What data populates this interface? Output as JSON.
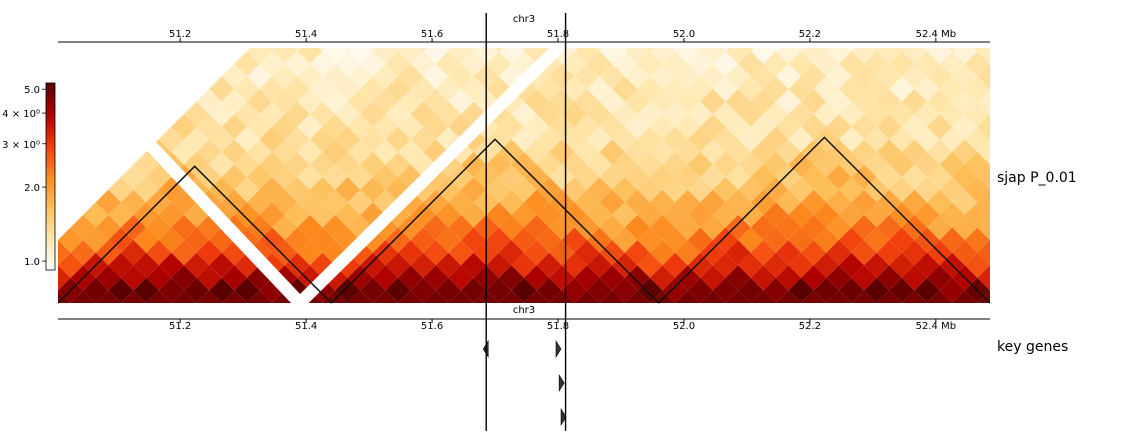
{
  "chart_data": {
    "type": "heatmap",
    "chromosome": "chr3",
    "x_ticks": [
      51.2,
      51.4,
      51.6,
      51.8,
      52.0,
      52.2,
      52.4
    ],
    "x_tick_labels": [
      "51.2",
      "51.4",
      "51.6",
      "51.8",
      "52.0",
      "52.2",
      "52.4 Mb"
    ],
    "xlim": [
      51.006,
      52.486
    ],
    "hic_track_label": "sjap   P_0.01",
    "gene_track_label": "key genes",
    "colorbar": {
      "scale": "log",
      "range": [
        0.92,
        5.3
      ],
      "tick_values": [
        1.0,
        2.0,
        3.0,
        4.0,
        5.0
      ],
      "tick_labels": [
        "1.0",
        "2.0",
        "3 × 10⁰",
        "4 × 10⁰",
        "5.0"
      ],
      "colormap": "YlOrRd-hot",
      "colors": [
        "#ffffff",
        "#ffe8b0",
        "#fdbf5a",
        "#fc8a1e",
        "#f03c0c",
        "#b00000",
        "#5a0000"
      ]
    },
    "tads": [
      {
        "start": 51.006,
        "end": 51.44
      },
      {
        "start": 51.44,
        "end": 51.96
      },
      {
        "start": 51.96,
        "end": 52.486
      }
    ],
    "masked_diagonals": [
      {
        "from": 51.006,
        "to": 51.39
      },
      {
        "from": 51.39,
        "to": 51.8
      }
    ],
    "highlight_lines": [
      51.686,
      51.812
    ],
    "genes": [
      {
        "position": 51.686,
        "strand": "-"
      },
      {
        "position": 51.8,
        "strand": "+"
      },
      {
        "position": 51.805,
        "strand": "+"
      },
      {
        "position": 51.808,
        "strand": "+"
      }
    ]
  }
}
